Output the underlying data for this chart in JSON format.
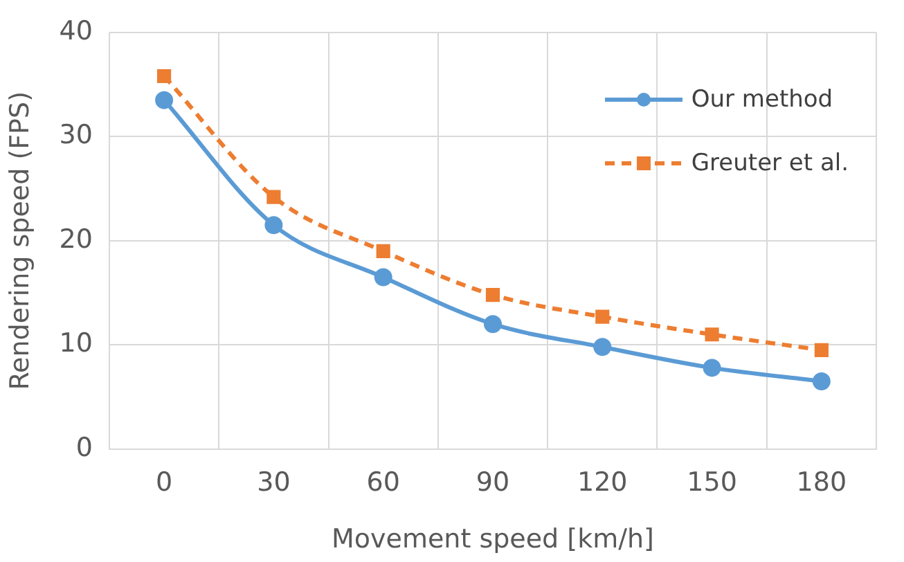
{
  "chart_data": {
    "type": "line",
    "xlabel": "Movement speed [km/h]",
    "ylabel": "Rendering speed (FPS)",
    "categories": [
      "0",
      "30",
      "60",
      "90",
      "120",
      "150",
      "180"
    ],
    "ylim": [
      0,
      40
    ],
    "yticks": [
      0,
      10,
      20,
      30,
      40
    ],
    "grid": true,
    "legend": "top right",
    "series": [
      {
        "name": "Our method",
        "color": "#5b9bd5",
        "marker": "circle",
        "line_style": "solid",
        "values": [
          33.5,
          21.5,
          16.5,
          12,
          9.8,
          7.8,
          6.5
        ]
      },
      {
        "name": "Greuter et al.",
        "color": "#ed7d31",
        "marker": "square",
        "line_style": "dashed",
        "values": [
          35.8,
          24.2,
          19,
          14.8,
          12.7,
          11,
          9.5
        ]
      }
    ]
  }
}
